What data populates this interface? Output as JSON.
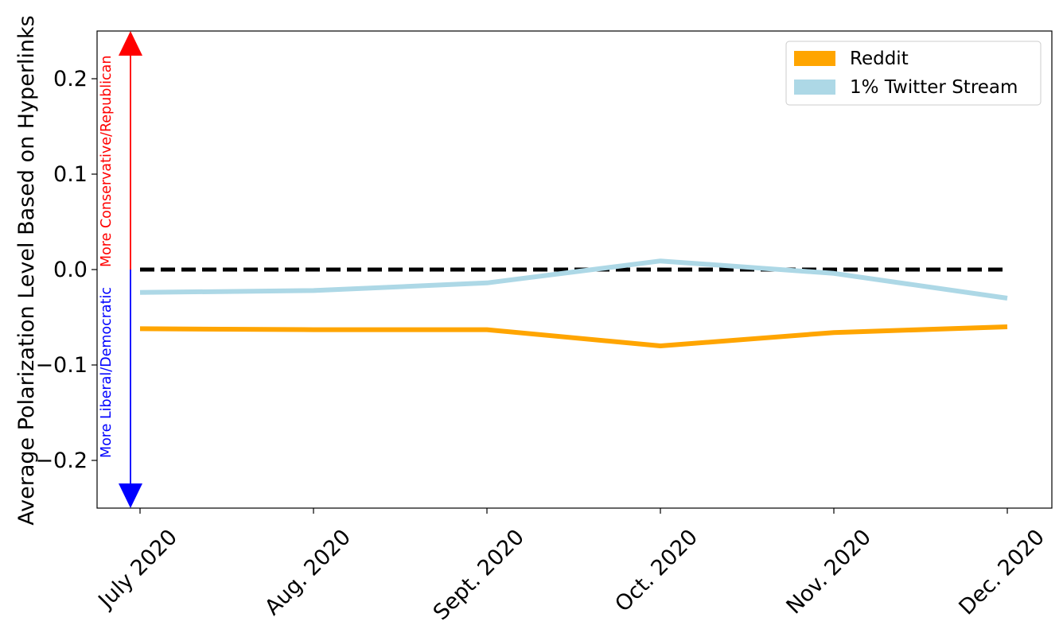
{
  "chart_data": {
    "type": "line",
    "title": "",
    "xlabel": "",
    "ylabel": "Average Polarization Level Based on Hyperlinks",
    "categories": [
      "July 2020",
      "Aug. 2020",
      "Sept. 2020",
      "Oct. 2020",
      "Nov. 2020",
      "Dec. 2020"
    ],
    "ylim": [
      -0.25,
      0.25
    ],
    "yticks": [
      -0.2,
      -0.1,
      0.0,
      0.1,
      0.2
    ],
    "ytick_labels": [
      "−0.2",
      "−0.1",
      "0.0",
      "0.1",
      "0.2"
    ],
    "grid": false,
    "legend_position": "top-right",
    "series": [
      {
        "name": "Reddit",
        "color": "#FFA500",
        "values": [
          -0.062,
          -0.063,
          -0.063,
          -0.08,
          -0.066,
          -0.06
        ]
      },
      {
        "name": "1% Twitter Stream",
        "color": "#ADD8E6",
        "values": [
          -0.024,
          -0.022,
          -0.014,
          0.009,
          -0.004,
          -0.03
        ]
      }
    ],
    "reference_line": {
      "y": 0.0,
      "style": "dashed",
      "color": "#000000"
    },
    "annotations": {
      "up": {
        "text": "More Conservative/Republican",
        "color": "#FF0000"
      },
      "down": {
        "text": "More Liberal/Democratic",
        "color": "#0000FF"
      }
    }
  }
}
